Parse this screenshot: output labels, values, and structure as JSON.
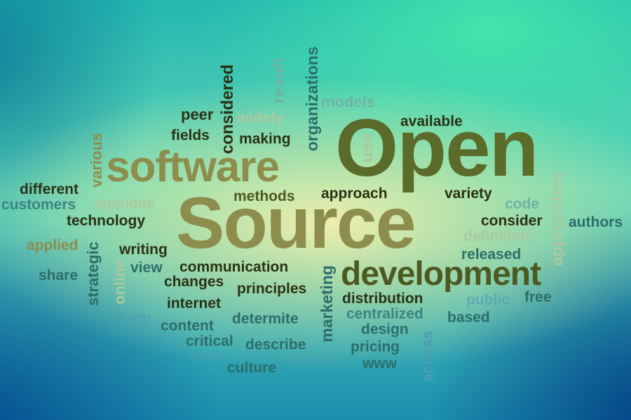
{
  "words": {
    "open": "Open",
    "source": "Source",
    "software": "software",
    "development": "development",
    "organizations": "organizations",
    "result": "result",
    "considered": "considered",
    "models": "models",
    "peer": "peer",
    "widely": "widely",
    "available": "available",
    "fields": "fields",
    "making": "making",
    "use": "use",
    "various": "various",
    "different": "different",
    "methods": "methods",
    "approach": "approach",
    "variety": "variety",
    "approaches": "approaches",
    "customers": "customers",
    "agendas": "agendas",
    "code": "code",
    "technology": "technology",
    "consider": "consider",
    "authors": "authors",
    "definition": "definition",
    "applied": "applied",
    "strategic": "strategic",
    "writing": "writing",
    "released": "released",
    "online": "online",
    "view": "view",
    "communication": "communication",
    "marketing": "marketing",
    "share": "share",
    "changes": "changes",
    "principles": "principles",
    "distribution": "distribution",
    "public": "public",
    "free": "free",
    "internet": "internet",
    "centralized": "centralized",
    "term": "term",
    "determite": "determite",
    "based": "based",
    "content": "content",
    "design": "design",
    "critical": "critical",
    "describe": "describe",
    "access": "access",
    "pricing": "pricing",
    "user": "user",
    "culture": "culture",
    "written": "written",
    "www": "www"
  }
}
